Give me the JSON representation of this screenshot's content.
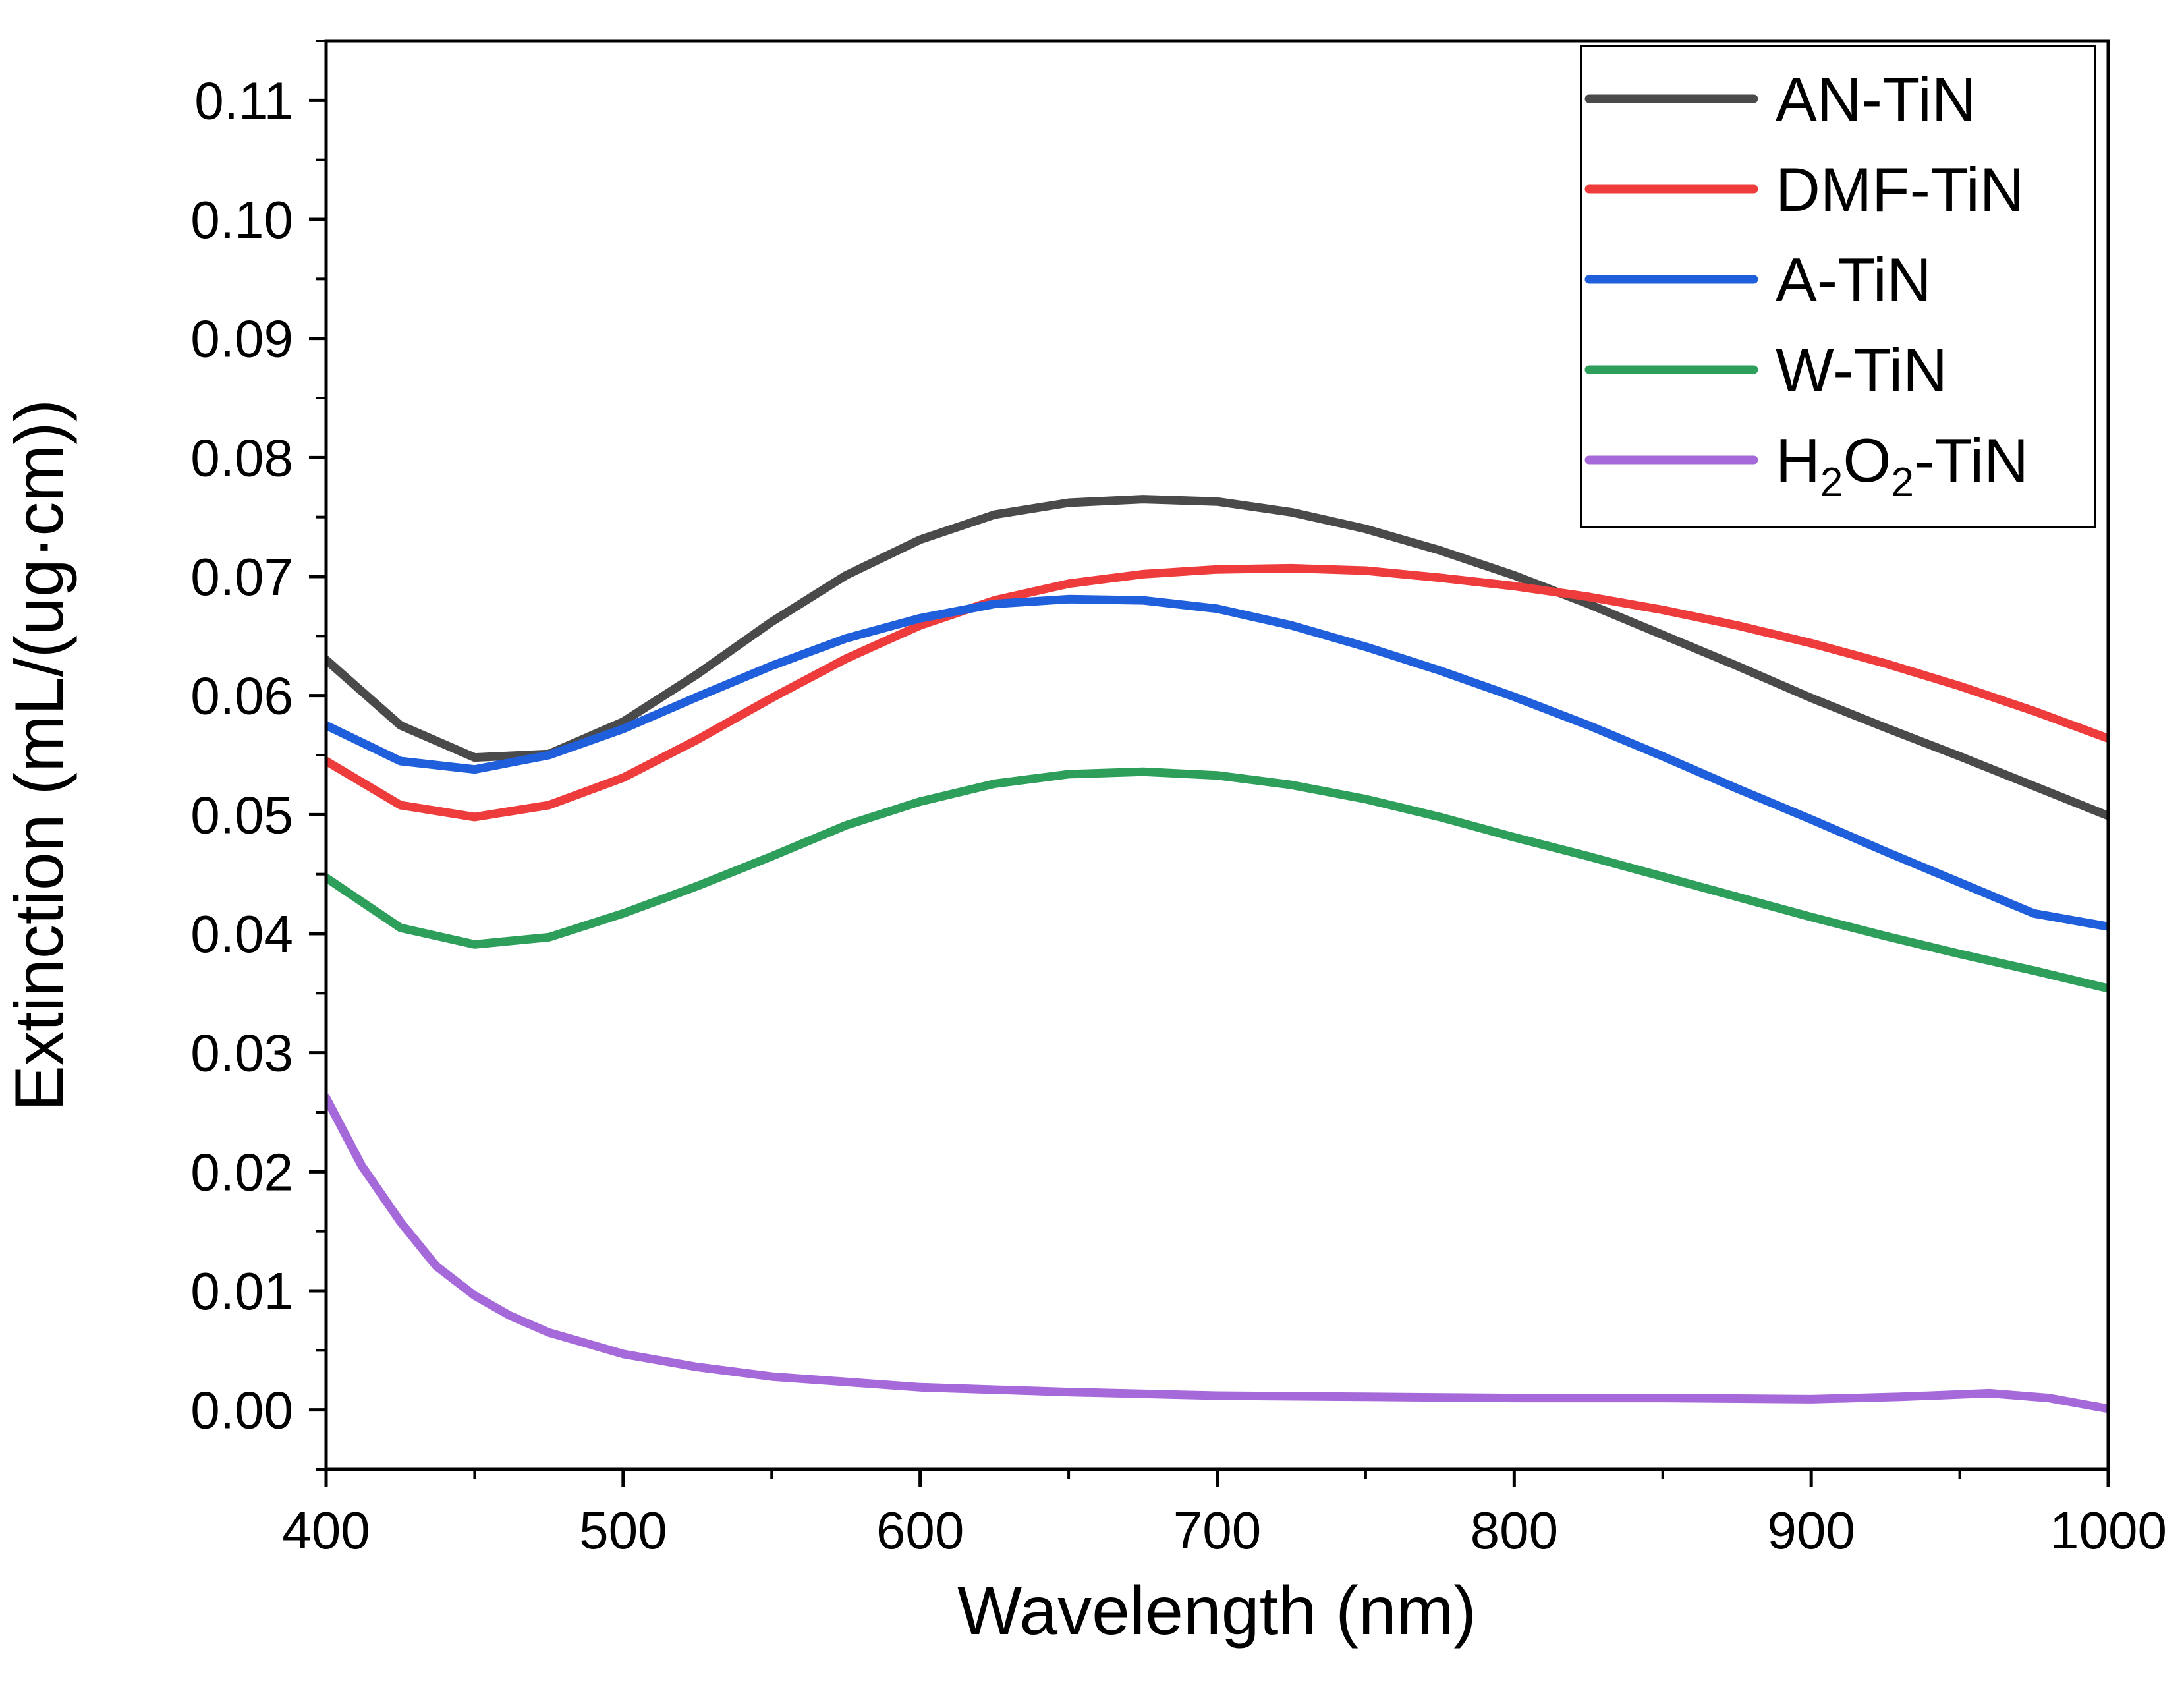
{
  "chart_data": {
    "type": "line",
    "title": "",
    "xlabel": "Wavelength (nm)",
    "ylabel": "Extinction (mL/(ug·cm))",
    "xlim": [
      400,
      1000
    ],
    "ylim": [
      -0.005,
      0.115
    ],
    "xticks": [
      400,
      500,
      600,
      700,
      800,
      900,
      1000
    ],
    "xtick_labels": [
      "400",
      "500",
      "600",
      "700",
      "800",
      "900",
      "1000"
    ],
    "yticks": [
      0.0,
      0.01,
      0.02,
      0.03,
      0.04,
      0.05,
      0.06,
      0.07,
      0.08,
      0.09,
      0.1,
      0.11
    ],
    "ytick_labels": [
      "0.00",
      "0.01",
      "0.02",
      "0.03",
      "0.04",
      "0.05",
      "0.06",
      "0.07",
      "0.08",
      "0.09",
      "0.10",
      "0.11"
    ],
    "grid": false,
    "legend_position": "top-right",
    "series": [
      {
        "name": "AN-TiN",
        "name_base": "AN-TiN",
        "color": "#4a4a4a",
        "x": [
          400,
          425,
          450,
          475,
          500,
          525,
          550,
          575,
          600,
          625,
          650,
          675,
          700,
          725,
          750,
          775,
          800,
          825,
          850,
          875,
          900,
          925,
          950,
          975,
          1000
        ],
        "y": [
          0.063,
          0.0575,
          0.0548,
          0.0551,
          0.0578,
          0.0618,
          0.0662,
          0.0701,
          0.0731,
          0.0752,
          0.0762,
          0.0765,
          0.0763,
          0.0754,
          0.074,
          0.0722,
          0.0701,
          0.0677,
          0.0651,
          0.0625,
          0.0598,
          0.0573,
          0.0549,
          0.0524,
          0.0499
        ]
      },
      {
        "name": "DMF-TiN",
        "name_base": "DMF-TiN",
        "color": "#ee3b3b",
        "x": [
          400,
          425,
          450,
          475,
          500,
          525,
          550,
          575,
          600,
          625,
          650,
          675,
          700,
          725,
          750,
          775,
          800,
          825,
          850,
          875,
          900,
          925,
          950,
          975,
          1000
        ],
        "y": [
          0.0545,
          0.0508,
          0.0498,
          0.0508,
          0.0531,
          0.0563,
          0.0598,
          0.0631,
          0.0659,
          0.068,
          0.0694,
          0.0702,
          0.0706,
          0.0707,
          0.0705,
          0.0699,
          0.0692,
          0.0683,
          0.0672,
          0.0659,
          0.0644,
          0.0627,
          0.0608,
          0.0587,
          0.0564
        ]
      },
      {
        "name": "A-TiN",
        "name_base": "A-TiN",
        "color": "#1f5fdb",
        "x": [
          400,
          425,
          450,
          475,
          500,
          525,
          550,
          575,
          600,
          625,
          650,
          675,
          700,
          725,
          750,
          775,
          800,
          825,
          850,
          875,
          900,
          925,
          950,
          975,
          1000
        ],
        "y": [
          0.0575,
          0.0545,
          0.0538,
          0.055,
          0.0572,
          0.0599,
          0.0625,
          0.0648,
          0.0665,
          0.0677,
          0.0681,
          0.068,
          0.0673,
          0.0659,
          0.0641,
          0.0621,
          0.0599,
          0.0575,
          0.0549,
          0.0522,
          0.0496,
          0.0469,
          0.0443,
          0.0417,
          0.0406
        ]
      },
      {
        "name": "W-TiN",
        "name_base": "W-TiN",
        "color": "#2e9e5b",
        "x": [
          400,
          425,
          450,
          475,
          500,
          525,
          550,
          575,
          600,
          625,
          650,
          675,
          700,
          725,
          750,
          775,
          800,
          825,
          850,
          875,
          900,
          925,
          950,
          975,
          1000
        ],
        "y": [
          0.0447,
          0.0405,
          0.0391,
          0.0397,
          0.0417,
          0.044,
          0.0465,
          0.0491,
          0.0511,
          0.0526,
          0.0534,
          0.0536,
          0.0533,
          0.0525,
          0.0513,
          0.0498,
          0.0481,
          0.0465,
          0.0448,
          0.0431,
          0.0414,
          0.0398,
          0.0383,
          0.0369,
          0.0354
        ]
      },
      {
        "name": "H2O2-TiN",
        "name_base": "H",
        "name_sub1": "2",
        "name_mid": "O",
        "name_sub2": "2",
        "name_tail": "-TiN",
        "color": "#a569d9",
        "x": [
          400,
          412,
          425,
          437,
          450,
          462,
          475,
          500,
          525,
          550,
          600,
          650,
          700,
          750,
          800,
          850,
          900,
          930,
          960,
          980,
          1000
        ],
        "y": [
          0.0262,
          0.0205,
          0.0158,
          0.0121,
          0.0096,
          0.0079,
          0.0065,
          0.0047,
          0.0036,
          0.0028,
          0.0019,
          0.0015,
          0.0012,
          0.0011,
          0.001,
          0.001,
          0.0009,
          0.0011,
          0.0014,
          0.001,
          0.0001
        ]
      }
    ]
  }
}
